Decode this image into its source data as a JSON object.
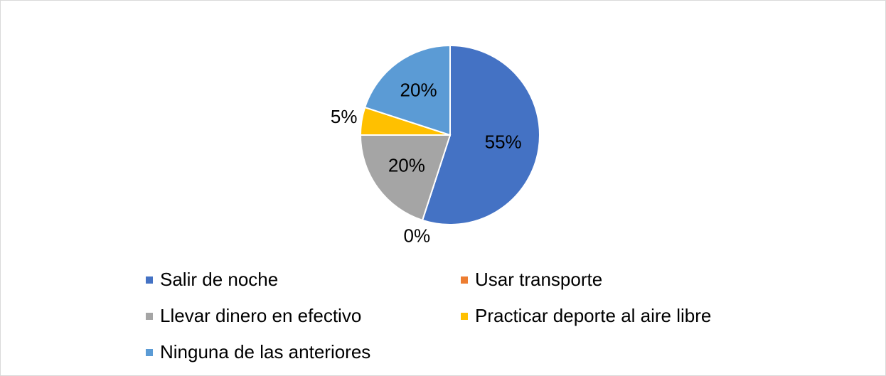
{
  "chart_data": {
    "type": "pie",
    "categories": [
      "Salir de noche",
      "Usar transporte",
      "Llevar dinero en efectivo",
      "Practicar deporte al aire libre",
      "Ninguna de las anteriores"
    ],
    "values": [
      55,
      0,
      20,
      5,
      20
    ],
    "value_labels": [
      "55%",
      "0%",
      "20%",
      "5%",
      "20%"
    ],
    "colors": [
      "#4472c4",
      "#ed7d31",
      "#a5a5a5",
      "#ffc000",
      "#5b9bd5"
    ],
    "legend": "bottom"
  }
}
